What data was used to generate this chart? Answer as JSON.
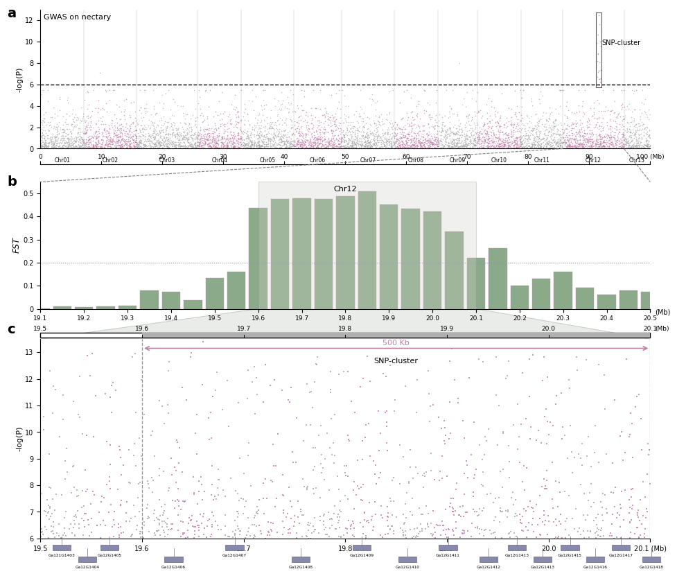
{
  "panel_a": {
    "title": "GWAS on nectary",
    "ylabel": "-log(P)",
    "ylim": [
      0,
      13
    ],
    "yticks": [
      0,
      2,
      4,
      6,
      8,
      10,
      12
    ],
    "threshold": 6.0,
    "chromosomes": [
      "Chr01",
      "Chr02",
      "Chr03",
      "Chr04",
      "Chr05",
      "Chr06",
      "Chr07",
      "Chr08",
      "Chr09",
      "Chr10",
      "Chr11",
      "Chr12",
      "Chr13"
    ],
    "chrom_sizes": [
      500,
      600,
      700,
      500,
      600,
      550,
      600,
      500,
      450,
      500,
      480,
      700,
      300
    ],
    "snp_cluster_label": "SNP-cluster",
    "color1": "#a8a8a8",
    "color2": "#c080a8"
  },
  "panel_b": {
    "xlabel": "Chr12",
    "ylabel": "FST",
    "ylim": [
      0,
      0.55
    ],
    "yticks": [
      0,
      0.1,
      0.2,
      0.3,
      0.4,
      0.5
    ],
    "threshold": 0.2,
    "xmin": 19.1,
    "xmax": 20.5,
    "xtick_vals": [
      19.1,
      19.2,
      19.3,
      19.4,
      19.5,
      19.6,
      19.7,
      19.8,
      19.9,
      20.0,
      20.1,
      20.2,
      20.3,
      20.4,
      20.5
    ],
    "xtick_labels": [
      "19.1",
      "19.2",
      "19.3",
      "19.4",
      "19.5",
      "19.6",
      "19.7",
      "19.8",
      "19.9",
      "20.0",
      "20.1",
      "20.2",
      "20.3",
      "20.4",
      "20.5"
    ],
    "xlabel_unit": "(Mb)",
    "bar_color_fill": "#8aaa8a",
    "bar_color_edge": "#c090b0",
    "zoom_region": [
      19.6,
      20.1
    ]
  },
  "panel_c": {
    "ylabel": "-log(P)",
    "ylim": [
      6,
      13.5
    ],
    "yticks": [
      6,
      7,
      8,
      9,
      10,
      11,
      12,
      13
    ],
    "xmin": 19.5,
    "xmax": 20.1,
    "xtick_vals": [
      19.5,
      19.6,
      19.7,
      19.8,
      19.9,
      20.0,
      20.1
    ],
    "xtick_labels": [
      "19.5",
      "19.6",
      "19.7",
      "19.8",
      "19.9",
      "20.0",
      "20.1 (Mb)"
    ],
    "arrow_label": "500 Kb",
    "cluster_label": "SNP-cluster",
    "dashed_lines": [
      19.6,
      20.1
    ],
    "color1": "#a8a8a8",
    "color2": "#c080a8",
    "genes": [
      {
        "name": "Ga121G1403",
        "x": 19.515,
        "tier": 0
      },
      {
        "name": "Ga12G1404",
        "x": 19.54,
        "tier": 1
      },
      {
        "name": "Ga12G1405",
        "x": 19.562,
        "tier": 0
      },
      {
        "name": "Ga12G1406",
        "x": 19.625,
        "tier": 1
      },
      {
        "name": "Ga12G1407",
        "x": 19.685,
        "tier": 0
      },
      {
        "name": "Ga12G1408",
        "x": 19.75,
        "tier": 1
      },
      {
        "name": "Ga12G1409",
        "x": 19.81,
        "tier": 0
      },
      {
        "name": "Ga12G1410",
        "x": 19.855,
        "tier": 1
      },
      {
        "name": "Ga12G1411",
        "x": 19.895,
        "tier": 0
      },
      {
        "name": "Ga12G1412",
        "x": 19.935,
        "tier": 1
      },
      {
        "name": "Ga12G1413",
        "x": 19.963,
        "tier": 0
      },
      {
        "name": "Ga12G1413",
        "x": 19.988,
        "tier": 1
      },
      {
        "name": "Ga12G1415",
        "x": 20.015,
        "tier": 0
      },
      {
        "name": "Ga12G1416",
        "x": 20.04,
        "tier": 1
      },
      {
        "name": "Ga12G1417",
        "x": 20.065,
        "tier": 0
      },
      {
        "name": "Ga12G1418",
        "x": 20.095,
        "tier": 1
      }
    ]
  },
  "bg_color": "#ffffff",
  "text_color": "#222222"
}
